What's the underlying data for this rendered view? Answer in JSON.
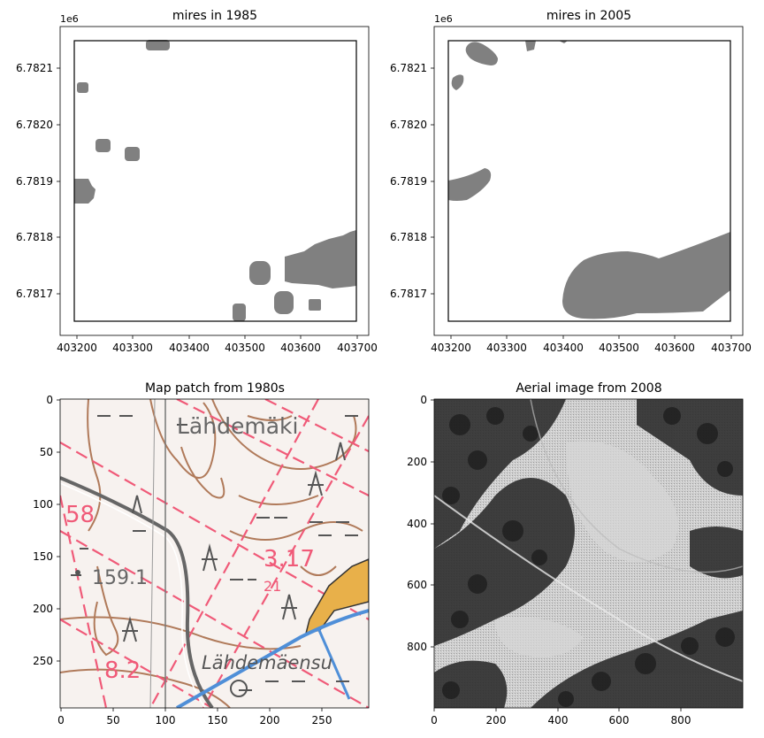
{
  "panels": {
    "p1985": {
      "title": "mires in 1985",
      "offset_label": "1e6",
      "x_ticks": [
        "403200",
        "403300",
        "403400",
        "403500",
        "403600",
        "403700"
      ],
      "y_ticks": [
        "6.7821",
        "6.7820",
        "6.7819",
        "6.7818",
        "6.7817"
      ]
    },
    "p2005": {
      "title": "mires in 2005",
      "offset_label": "1e6",
      "x_ticks": [
        "403200",
        "403300",
        "403400",
        "403500",
        "403600",
        "403700"
      ],
      "y_ticks": [
        "6.7821",
        "6.7820",
        "6.7819",
        "6.7818",
        "6.7817"
      ]
    },
    "map": {
      "title": "Map patch from 1980s",
      "x_ticks": [
        "0",
        "50",
        "100",
        "150",
        "200",
        "250"
      ],
      "y_ticks": [
        "0",
        "50",
        "100",
        "150",
        "200",
        "250"
      ],
      "labels": {
        "place_top": "Lähdemäki",
        "place_bottom": "Lähdemäensu",
        "n58": "58",
        "n159": "159.1",
        "n317": "3.17",
        "n21": "21",
        "n82": "8.2"
      }
    },
    "aerial": {
      "title": "Aerial image from 2008",
      "x_ticks": [
        "0",
        "200",
        "400",
        "600",
        "800"
      ],
      "y_ticks": [
        "0",
        "200",
        "400",
        "600",
        "800"
      ]
    }
  },
  "colors": {
    "mire": "#808080",
    "contour": "#b07a5a",
    "grid_red": "#f05a78",
    "water": "#4f8fd8",
    "field": "#e8b04a"
  }
}
